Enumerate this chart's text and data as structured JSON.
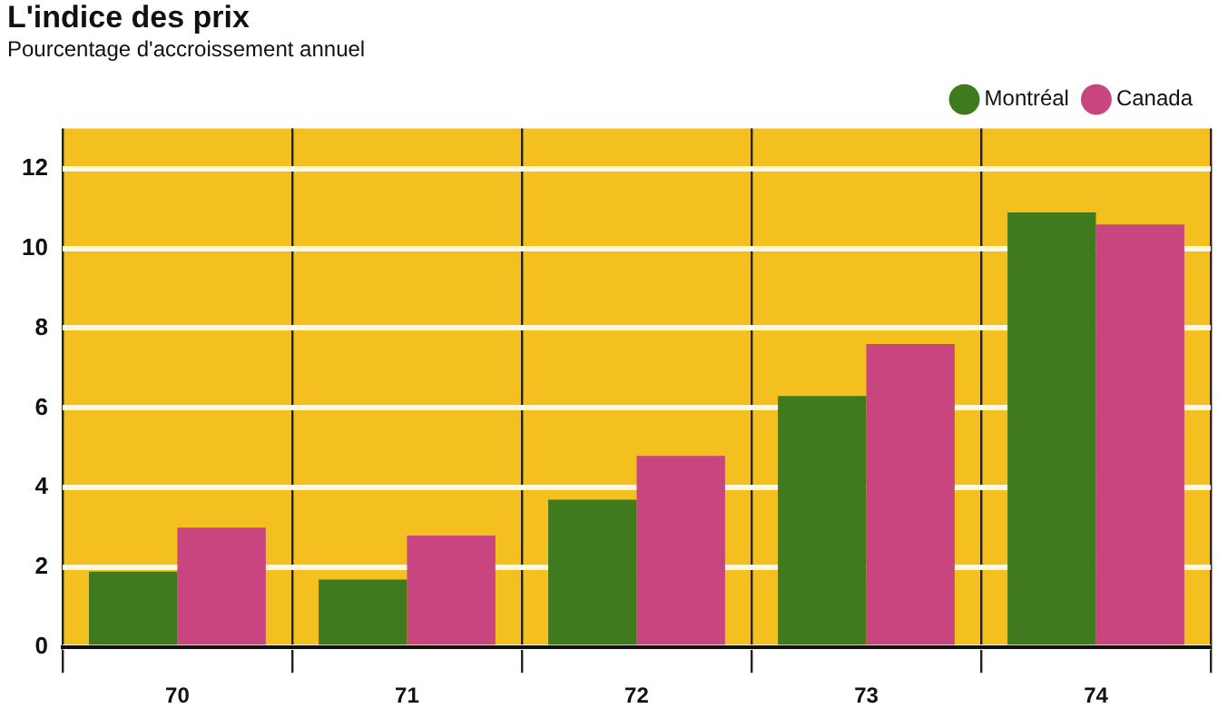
{
  "chart_data": {
    "type": "bar",
    "title": "L'indice des prix",
    "subtitle": "Pourcentage d'accroissement annuel",
    "categories": [
      "70",
      "71",
      "72",
      "73",
      "74"
    ],
    "series": [
      {
        "name": "Montréal",
        "color": "#3f7a1e",
        "values": [
          1.9,
          1.7,
          3.7,
          6.3,
          10.9
        ]
      },
      {
        "name": "Canada",
        "color": "#c84580",
        "values": [
          3.0,
          2.8,
          4.8,
          7.6,
          10.6
        ]
      }
    ],
    "ylim": [
      0,
      13
    ],
    "yticks": [
      0,
      2,
      4,
      6,
      8,
      10,
      12
    ],
    "grid": true,
    "legend": "top right"
  }
}
